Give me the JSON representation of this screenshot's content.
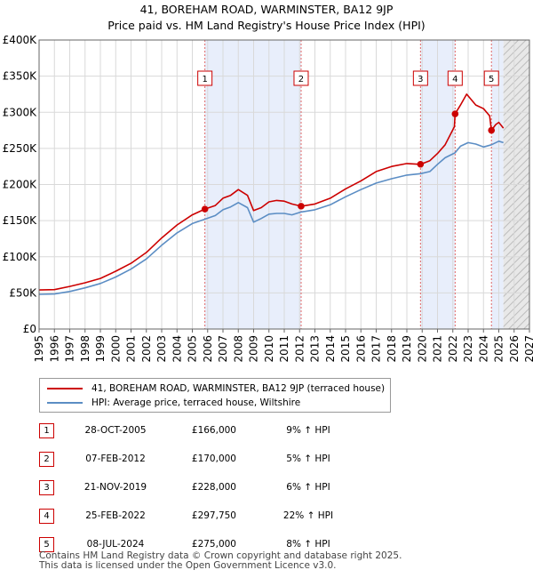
{
  "chart_data": {
    "type": "line",
    "title": "41, BOREHAM ROAD, WARMINSTER, BA12 9JP",
    "subtitle": "Price paid vs. HM Land Registry's House Price Index (HPI)",
    "xlim": [
      1995,
      2027
    ],
    "ylim": [
      0,
      400000
    ],
    "x_ticks": [
      "1995",
      "1996",
      "1997",
      "1998",
      "1999",
      "2000",
      "2001",
      "2002",
      "2003",
      "2004",
      "2005",
      "2006",
      "2007",
      "2008",
      "2009",
      "2010",
      "2011",
      "2012",
      "2013",
      "2014",
      "2015",
      "2016",
      "2017",
      "2018",
      "2019",
      "2020",
      "2021",
      "2022",
      "2023",
      "2024",
      "2025",
      "2026",
      "2027"
    ],
    "y_ticks": [
      {
        "value": 0,
        "label": "£0"
      },
      {
        "value": 50000,
        "label": "£50K"
      },
      {
        "value": 100000,
        "label": "£100K"
      },
      {
        "value": 150000,
        "label": "£150K"
      },
      {
        "value": 200000,
        "label": "£200K"
      },
      {
        "value": 250000,
        "label": "£250K"
      },
      {
        "value": 300000,
        "label": "£300K"
      },
      {
        "value": 350000,
        "label": "£350K"
      },
      {
        "value": 400000,
        "label": "£400K"
      }
    ],
    "shaded_periods": [
      [
        2005.82,
        2012.1
      ],
      [
        2019.89,
        2022.15
      ],
      [
        2024.52,
        2025.3
      ]
    ],
    "future_from": 2025.3,
    "series": [
      {
        "name": "41, BOREHAM ROAD, WARMINSTER, BA12 9JP (terraced house)",
        "color": "#cc0000",
        "x": [
          1995,
          1996,
          1997,
          1998,
          1999,
          2000,
          2001,
          2002,
          2003,
          2004,
          2005,
          2005.82,
          2006.5,
          2007,
          2007.5,
          2008,
          2008.6,
          2009,
          2009.5,
          2010,
          2010.5,
          2011,
          2011.5,
          2012.1,
          2013,
          2014,
          2015,
          2016,
          2017,
          2018,
          2019,
          2019.89,
          2020.5,
          2021,
          2021.5,
          2022.1,
          2022.15,
          2022.5,
          2022.9,
          2023.5,
          2024,
          2024.4,
          2024.52,
          2024.8,
          2025,
          2025.3
        ],
        "values": [
          54000,
          54500,
          59000,
          64000,
          70000,
          80000,
          91000,
          106000,
          126000,
          144000,
          158000,
          166000,
          171000,
          181000,
          185000,
          193000,
          185000,
          164000,
          168000,
          176000,
          178000,
          177000,
          173000,
          170000,
          173000,
          181000,
          194000,
          205000,
          218000,
          225000,
          229000,
          228000,
          233000,
          243000,
          255000,
          280000,
          297750,
          310000,
          325000,
          310000,
          305000,
          295000,
          275000,
          283000,
          286000,
          278000
        ]
      },
      {
        "name": "HPI: Average price, terraced house, Wiltshire",
        "color": "#5b8dc4",
        "x": [
          1995,
          1996,
          1997,
          1998,
          1999,
          2000,
          2001,
          2002,
          2003,
          2004,
          2005,
          2005.82,
          2006.5,
          2007,
          2007.5,
          2008,
          2008.6,
          2009,
          2009.5,
          2010,
          2010.5,
          2011,
          2011.5,
          2012.1,
          2013,
          2014,
          2015,
          2016,
          2017,
          2018,
          2019,
          2019.89,
          2020.5,
          2021,
          2021.5,
          2022.15,
          2022.5,
          2023,
          2023.5,
          2024,
          2024.52,
          2025,
          2025.3
        ],
        "values": [
          48000,
          48500,
          52000,
          57000,
          63000,
          72000,
          83000,
          97000,
          116000,
          133000,
          146000,
          152000,
          157000,
          165000,
          169000,
          175000,
          168000,
          148000,
          153000,
          159000,
          160000,
          160000,
          158000,
          162000,
          165000,
          172000,
          183000,
          193000,
          202000,
          208000,
          213000,
          215000,
          218000,
          228000,
          237000,
          244000,
          253000,
          258000,
          256000,
          252000,
          255000,
          260000,
          258000
        ]
      }
    ],
    "sales": [
      {
        "label": "1",
        "x": 2005.82,
        "value": 166000
      },
      {
        "label": "2",
        "x": 2012.1,
        "value": 170000
      },
      {
        "label": "3",
        "x": 2019.89,
        "value": 228000
      },
      {
        "label": "4",
        "x": 2022.15,
        "value": 297750
      },
      {
        "label": "5",
        "x": 2024.52,
        "value": 275000
      }
    ]
  },
  "legend": {
    "property_label": "41, BOREHAM ROAD, WARMINSTER, BA12 9JP (terraced house)",
    "hpi_label": "HPI: Average price, terraced house, Wiltshire"
  },
  "table": [
    {
      "num": "1",
      "date": "28-OCT-2005",
      "price": "£166,000",
      "hpi": "9% ↑ HPI"
    },
    {
      "num": "2",
      "date": "07-FEB-2012",
      "price": "£170,000",
      "hpi": "5% ↑ HPI"
    },
    {
      "num": "3",
      "date": "21-NOV-2019",
      "price": "£228,000",
      "hpi": "6% ↑ HPI"
    },
    {
      "num": "4",
      "date": "25-FEB-2022",
      "price": "£297,750",
      "hpi": "22% ↑ HPI"
    },
    {
      "num": "5",
      "date": "08-JUL-2024",
      "price": "£275,000",
      "hpi": "8% ↑ HPI"
    }
  ],
  "footer": {
    "line1": "Contains HM Land Registry data © Crown copyright and database right 2025.",
    "line2": "This data is licensed under the Open Government Licence v3.0."
  }
}
